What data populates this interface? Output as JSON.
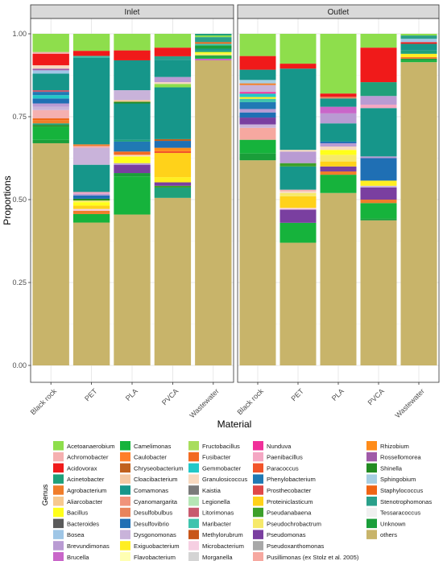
{
  "chart_data": {
    "type": "bar",
    "stacked": true,
    "xlabel": "Material",
    "ylabel": "Proportions",
    "ylim": [
      0,
      1
    ],
    "yticks": [
      "0.00",
      "0.25",
      "0.50",
      "0.75",
      "1.00"
    ],
    "grid": true,
    "legend_position": "bottom",
    "legend_title": "Genus",
    "panels": [
      "Inlet",
      "Outlet"
    ],
    "categories": [
      "Black rock",
      "PET",
      "PLA",
      "PVCA",
      "Wastewater"
    ],
    "genera": [
      {
        "name": "Acetoanaerobium",
        "color": "#8ede4c"
      },
      {
        "name": "Achromobacter",
        "color": "#f5b0b0"
      },
      {
        "name": "Acidovorax",
        "color": "#f01a1a"
      },
      {
        "name": "Acinetobacter",
        "color": "#1fa07a"
      },
      {
        "name": "Agrobacterium",
        "color": "#f07d2a"
      },
      {
        "name": "Aliarcobacter",
        "color": "#f7c98f"
      },
      {
        "name": "Bacillus",
        "color": "#ffff1a"
      },
      {
        "name": "Bacteroides",
        "color": "#5a5a5a"
      },
      {
        "name": "Bosea",
        "color": "#9fc6e6"
      },
      {
        "name": "Brevundimonas",
        "color": "#b99bd3"
      },
      {
        "name": "Brucella",
        "color": "#c966c9"
      },
      {
        "name": "Camelimonas",
        "color": "#16b33c"
      },
      {
        "name": "Caulobacter",
        "color": "#ff7f2a"
      },
      {
        "name": "Chryseobacterium",
        "color": "#c0611f"
      },
      {
        "name": "Cloacibacterium",
        "color": "#f5c8a3"
      },
      {
        "name": "Comamonas",
        "color": "#16968a"
      },
      {
        "name": "Cyanomargarita",
        "color": "#f0937a"
      },
      {
        "name": "Desulfobulbus",
        "color": "#e8845c"
      },
      {
        "name": "Desulfovibrio",
        "color": "#1f6fb4"
      },
      {
        "name": "Dysgonomonas",
        "color": "#c9b3da"
      },
      {
        "name": "Exiguobacterium",
        "color": "#ffee22"
      },
      {
        "name": "Flavobacterium",
        "color": "#ffffb3"
      },
      {
        "name": "Fructobacillus",
        "color": "#a8dd5c"
      },
      {
        "name": "Fusibacter",
        "color": "#f26b22"
      },
      {
        "name": "Gemmobacter",
        "color": "#22c8c8"
      },
      {
        "name": "Granulosicoccus",
        "color": "#f8d9bf"
      },
      {
        "name": "Kaistia",
        "color": "#7a7a7a"
      },
      {
        "name": "Legionella",
        "color": "#b5e6b5"
      },
      {
        "name": "Litorimonas",
        "color": "#c85a6e"
      },
      {
        "name": "Maribacter",
        "color": "#3fc4ad"
      },
      {
        "name": "Methylorubrum",
        "color": "#c8561a"
      },
      {
        "name": "Microbacterium",
        "color": "#f6cfe2"
      },
      {
        "name": "Morganella",
        "color": "#d4d4d4"
      },
      {
        "name": "Nunduva",
        "color": "#f0309a"
      },
      {
        "name": "Paenibacillus",
        "color": "#f4a7c3"
      },
      {
        "name": "Paracoccus",
        "color": "#f2542a"
      },
      {
        "name": "Phenylobacterium",
        "color": "#2079b4"
      },
      {
        "name": "Prosthecobacter",
        "color": "#e04848"
      },
      {
        "name": "Proteiniclasticum",
        "color": "#ffd21a"
      },
      {
        "name": "Pseudanabaena",
        "color": "#3da02a"
      },
      {
        "name": "Pseudochrobactrum",
        "color": "#f6e96a"
      },
      {
        "name": "Pseudomonas",
        "color": "#7a3fa0"
      },
      {
        "name": "Pseudoxanthomonas",
        "color": "#a8a8a8"
      },
      {
        "name": "Pusillimonas (ex Stolz et al. 2005)",
        "color": "#f6a8a0"
      },
      {
        "name": "Rhizobium",
        "color": "#ff8c1a"
      },
      {
        "name": "Rossellomorea",
        "color": "#a05aa8"
      },
      {
        "name": "Shinella",
        "color": "#238b22"
      },
      {
        "name": "Sphingobium",
        "color": "#a6cee3"
      },
      {
        "name": "Staphylococcus",
        "color": "#f06414"
      },
      {
        "name": "Stenotrophomonas",
        "color": "#2aa08a"
      },
      {
        "name": "Tessaracoccus",
        "color": "#f0f0f0"
      },
      {
        "name": "Unknown",
        "color": "#1a9e3a"
      },
      {
        "name": "others",
        "color": "#c8b46a"
      }
    ],
    "bars": [
      {
        "panel": "Inlet",
        "category": "Black rock",
        "segments": [
          [
            "others",
            0.67
          ],
          [
            "Unknown",
            0.01
          ],
          [
            "Camelimonas",
            0.04
          ],
          [
            "Shinella",
            0.005
          ],
          [
            "Acinetobacter",
            0.005
          ],
          [
            "Agrobacterium",
            0.01
          ],
          [
            "Staphylococcus",
            0.005
          ],
          [
            "Achromobacter",
            0.025
          ],
          [
            "Dysgonomonas",
            0.01
          ],
          [
            "Brevundimonas",
            0.01
          ],
          [
            "Desulfovibrio",
            0.015
          ],
          [
            "Gemmobacter",
            0.01
          ],
          [
            "Phenylobacterium",
            0.01
          ],
          [
            "Litorimonas",
            0.005
          ],
          [
            "Comamonas",
            0.05
          ],
          [
            "Bosea",
            0.01
          ],
          [
            "Rossellomorea",
            0.005
          ],
          [
            "Granulosicoccus",
            0.01
          ],
          [
            "Acidovorax",
            0.035
          ],
          [
            "Achromobacter",
            0.005
          ],
          [
            "Acetoanaerobium",
            0.055
          ]
        ]
      },
      {
        "panel": "Inlet",
        "category": "PET",
        "segments": [
          [
            "others",
            0.42
          ],
          [
            "Camelimonas",
            0.025
          ],
          [
            "Agrobacterium",
            0.01
          ],
          [
            "Microbacterium",
            0.005
          ],
          [
            "Proteiniclasticum",
            0.01
          ],
          [
            "Bacillus",
            0.01
          ],
          [
            "Pseudochrobactrum",
            0.005
          ],
          [
            "Shinella",
            0.005
          ],
          [
            "Desulfovibrio",
            0.01
          ],
          [
            "Brevundimonas",
            0.005
          ],
          [
            "Paenibacillus",
            0.005
          ],
          [
            "Comamonas",
            0.08
          ],
          [
            "Dysgonomonas",
            0.05
          ],
          [
            "Achromobacter",
            0.005
          ],
          [
            "Agrobacterium",
            0.005
          ],
          [
            "Comamonas",
            0.255
          ],
          [
            "Maribacter",
            0.005
          ],
          [
            "Acidovorax",
            0.015
          ],
          [
            "Acetoanaerobium",
            0.05
          ]
        ]
      },
      {
        "panel": "Inlet",
        "category": "PLA",
        "segments": [
          [
            "others",
            0.455
          ],
          [
            "Camelimonas",
            0.115
          ],
          [
            "Unknown",
            0.01
          ],
          [
            "Pseudomonas",
            0.025
          ],
          [
            "Brevundimonas",
            0.005
          ],
          [
            "Bacillus",
            0.02
          ],
          [
            "Granulosicoccus",
            0.005
          ],
          [
            "Fusibacter",
            0.01
          ],
          [
            "Phenylobacterium",
            0.03
          ],
          [
            "Acinetobacter",
            0.005
          ],
          [
            "Comamonas",
            0.11
          ],
          [
            "Shinella",
            0.005
          ],
          [
            "Aliarcobacter",
            0.005
          ],
          [
            "Dysgonomonas",
            0.03
          ],
          [
            "Comamonas",
            0.09
          ],
          [
            "Acidovorax",
            0.03
          ],
          [
            "Acetoanaerobium",
            0.05
          ]
        ]
      },
      {
        "panel": "Inlet",
        "category": "PVCA",
        "segments": [
          [
            "others",
            0.485
          ],
          [
            "Acinetobacter",
            0.03
          ],
          [
            "Pseudanabaena",
            0.005
          ],
          [
            "Pseudomonas",
            0.01
          ],
          [
            "Exiguobacterium",
            0.015
          ],
          [
            "Proteiniclasticum",
            0.07
          ],
          [
            "Paracoccus",
            0.005
          ],
          [
            "Rhizobium",
            0.01
          ],
          [
            "Desulfovibrio",
            0.02
          ],
          [
            "Chryseobacterium",
            0.005
          ],
          [
            "Comamonas",
            0.15
          ],
          [
            "Acetoanaerobium",
            0.01
          ],
          [
            "Granulosicoccus",
            0.005
          ],
          [
            "Brevundimonas",
            0.015
          ],
          [
            "Comamonas",
            0.05
          ],
          [
            "Stenotrophomonas",
            0.01
          ],
          [
            "Acidovorax",
            0.025
          ],
          [
            "Acetoanaerobium",
            0.04
          ]
        ]
      },
      {
        "panel": "Inlet",
        "category": "Wastewater",
        "segments": [
          [
            "others",
            0.92
          ],
          [
            "Brucella",
            0.005
          ],
          [
            "Camelimonas",
            0.005
          ],
          [
            "Unknown",
            0.005
          ],
          [
            "Pseudochrobactrum",
            0.005
          ],
          [
            "Bacillus",
            0.005
          ],
          [
            "Acinetobacter",
            0.005
          ],
          [
            "Comamonas",
            0.005
          ],
          [
            "Unknown",
            0.01
          ],
          [
            "Maribacter",
            0.005
          ],
          [
            "Staphylococcus",
            0.005
          ],
          [
            "Stenotrophomonas",
            0.015
          ],
          [
            "Acetoanaerobium",
            0.005
          ],
          [
            "Acinetobacter",
            0.005
          ]
        ]
      },
      {
        "panel": "Outlet",
        "category": "Black rock",
        "segments": [
          [
            "others",
            0.6
          ],
          [
            "Unknown",
            0.02
          ],
          [
            "Camelimonas",
            0.04
          ],
          [
            "Pusillimonas (ex Stolz et al. 2005)",
            0.035
          ],
          [
            "Dysgonomonas",
            0.01
          ],
          [
            "Pseudomonas",
            0.02
          ],
          [
            "Desulfovibrio",
            0.015
          ],
          [
            "Brevundimonas",
            0.01
          ],
          [
            "Phenylobacterium",
            0.02
          ],
          [
            "Maribacter",
            0.01
          ],
          [
            "Exiguobacterium",
            0.005
          ],
          [
            "Gemmobacter",
            0.01
          ],
          [
            "Nunduva",
            0.005
          ],
          [
            "Dysgonomonas",
            0.02
          ],
          [
            "Agrobacterium",
            0.005
          ],
          [
            "Sphingobium",
            0.01
          ],
          [
            "Comamonas",
            0.03
          ],
          [
            "Acidovorax",
            0.04
          ],
          [
            "Acetoanaerobium",
            0.065
          ]
        ]
      },
      {
        "panel": "Outlet",
        "category": "PET",
        "segments": [
          [
            "others",
            0.37
          ],
          [
            "Camelimonas",
            0.06
          ],
          [
            "Pseudomonas",
            0.04
          ],
          [
            "Microbacterium",
            0.005
          ],
          [
            "Proteiniclasticum",
            0.035
          ],
          [
            "Pseudochrobactrum",
            0.01
          ],
          [
            "Granulosicoccus",
            0.005
          ],
          [
            "Achromobacter",
            0.005
          ],
          [
            "Comamonas",
            0.07
          ],
          [
            "Pseudanabaena",
            0.01
          ],
          [
            "Brevundimonas",
            0.035
          ],
          [
            "Granulosicoccus",
            0.005
          ],
          [
            "Comamonas",
            0.245
          ],
          [
            "Acidovorax",
            0.015
          ],
          [
            "Acetoanaerobium",
            0.09
          ]
        ]
      },
      {
        "panel": "Outlet",
        "category": "PLA",
        "segments": [
          [
            "others",
            0.52
          ],
          [
            "Camelimonas",
            0.055
          ],
          [
            "Agrobacterium",
            0.01
          ],
          [
            "Pseudomonas",
            0.015
          ],
          [
            "Proteiniclasticum",
            0.015
          ],
          [
            "Pseudochrobactrum",
            0.02
          ],
          [
            "Bacillus",
            0.015
          ],
          [
            "Granulosicoccus",
            0.01
          ],
          [
            "Brevundimonas",
            0.01
          ],
          [
            "Desulfovibrio",
            0.005
          ],
          [
            "Comamonas",
            0.055
          ],
          [
            "Brevundimonas",
            0.03
          ],
          [
            "Brucella",
            0.02
          ],
          [
            "Comamonas",
            0.025
          ],
          [
            "Desulfobulbus",
            0.005
          ],
          [
            "Acidovorax",
            0.01
          ],
          [
            "Acetoanaerobium",
            0.18
          ]
        ]
      },
      {
        "panel": "Outlet",
        "category": "PVCA",
        "segments": [
          [
            "others",
            0.42
          ],
          [
            "Unknown",
            0.005
          ],
          [
            "Camelimonas",
            0.045
          ],
          [
            "Agrobacterium",
            0.01
          ],
          [
            "Pseudomonas",
            0.035
          ],
          [
            "Dysgonomonas",
            0.005
          ],
          [
            "Exiguobacterium",
            0.015
          ],
          [
            "Desulfovibrio",
            0.065
          ],
          [
            "Brevundimonas",
            0.005
          ],
          [
            "Comamonas",
            0.14
          ],
          [
            "Paenibacillus",
            0.01
          ],
          [
            "Brevundimonas",
            0.025
          ],
          [
            "Acinetobacter",
            0.04
          ],
          [
            "Acidovorax",
            0.1
          ],
          [
            "Acetoanaerobium",
            0.04
          ]
        ]
      },
      {
        "panel": "Outlet",
        "category": "Wastewater",
        "segments": [
          [
            "others",
            0.91
          ],
          [
            "Camelimonas",
            0.005
          ],
          [
            "Unknown",
            0.005
          ],
          [
            "Agrobacterium",
            0.005
          ],
          [
            "Exiguobacterium",
            0.01
          ],
          [
            "Acinetobacter",
            0.01
          ],
          [
            "Comamonas",
            0.02
          ],
          [
            "Acidovorax",
            0.005
          ],
          [
            "Bosea",
            0.01
          ],
          [
            "Stenotrophomonas",
            0.01
          ],
          [
            "Acetoanaerobium",
            0.005
          ]
        ]
      }
    ]
  }
}
